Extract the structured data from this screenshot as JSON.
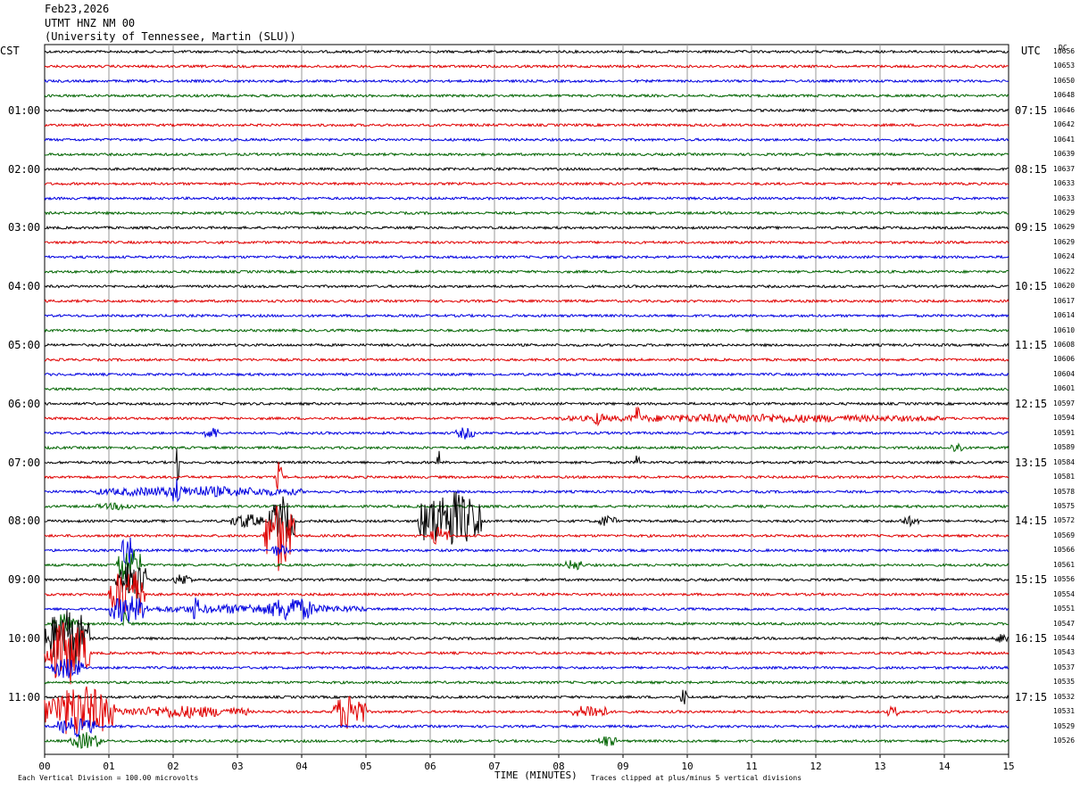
{
  "header": {
    "date": "Feb23,2026",
    "station": "UTMT HNZ NM 00",
    "network": "(University of Tennessee, Martin (SLU))"
  },
  "corners": {
    "left_tz": "CST",
    "right_tz": "UTC",
    "dc_label": "DC"
  },
  "footer": {
    "scale_note": "Each Vertical Division = 100.00 microvolts",
    "xlabel": "TIME (MINUTES)",
    "clip_note": "Traces clipped at plus/minus 5 vertical divisions"
  },
  "colors": {
    "cycle": [
      "#000000",
      "#e00000",
      "#0000e0",
      "#006400"
    ],
    "grid": "#999999"
  },
  "chart_data": {
    "type": "line",
    "x_range": [
      0,
      15
    ],
    "x_ticks": [
      "00",
      "01",
      "02",
      "03",
      "04",
      "05",
      "06",
      "07",
      "08",
      "09",
      "10",
      "11",
      "12",
      "13",
      "14",
      "15"
    ],
    "trace_count": 48,
    "minutes_per_trace": 15,
    "left_hour_labels": [
      "01:00",
      "02:00",
      "03:00",
      "04:00",
      "05:00",
      "06:00",
      "07:00",
      "08:00",
      "09:00",
      "10:00",
      "11:00"
    ],
    "right_hour_labels": [
      "07:15",
      "08:15",
      "09:15",
      "10:15",
      "11:15",
      "12:15",
      "13:15",
      "14:15",
      "15:15",
      "16:15",
      "17:15"
    ],
    "dc_values": [
      "10656",
      "10653",
      "10650",
      "10648",
      "10646",
      "10642",
      "10641",
      "10639",
      "10637",
      "10633",
      "10633",
      "10629",
      "10629",
      "10629",
      "10624",
      "10622",
      "10620",
      "10617",
      "10614",
      "10610",
      "10608",
      "10606",
      "10604",
      "10601",
      "10597",
      "10594",
      "10591",
      "10589",
      "10584",
      "10581",
      "10578",
      "10575",
      "10572",
      "10569",
      "10566",
      "10561",
      "10556",
      "10554",
      "10551",
      "10547",
      "10544",
      "10543",
      "10537",
      "10535",
      "10532",
      "10531",
      "10529",
      "10526"
    ],
    "events": [
      {
        "trace": 25,
        "start": 8.0,
        "end": 14.0,
        "amp": 0.35
      },
      {
        "trace": 25,
        "start": 8.5,
        "end": 8.7,
        "amp": 0.6
      },
      {
        "trace": 25,
        "start": 9.2,
        "end": 9.25,
        "amp": 2.2
      },
      {
        "trace": 26,
        "start": 2.5,
        "end": 2.7,
        "amp": 0.6
      },
      {
        "trace": 26,
        "start": 6.4,
        "end": 6.7,
        "amp": 0.5
      },
      {
        "trace": 27,
        "start": 14.1,
        "end": 14.3,
        "amp": 0.5
      },
      {
        "trace": 28,
        "start": 2.05,
        "end": 2.1,
        "amp": 1.8
      },
      {
        "trace": 28,
        "start": 6.1,
        "end": 6.15,
        "amp": 1.3
      },
      {
        "trace": 28,
        "start": 9.2,
        "end": 9.25,
        "amp": 1.4
      },
      {
        "trace": 29,
        "start": 3.6,
        "end": 3.7,
        "amp": 1.3
      },
      {
        "trace": 30,
        "start": 0.8,
        "end": 4.0,
        "amp": 0.45
      },
      {
        "trace": 30,
        "start": 2.0,
        "end": 2.1,
        "amp": 1.5
      },
      {
        "trace": 31,
        "start": 0.8,
        "end": 1.5,
        "amp": 0.3
      },
      {
        "trace": 32,
        "start": 2.9,
        "end": 3.4,
        "amp": 0.6
      },
      {
        "trace": 32,
        "start": 3.5,
        "end": 3.9,
        "amp": 2.0
      },
      {
        "trace": 32,
        "start": 5.8,
        "end": 6.8,
        "amp": 2.5
      },
      {
        "trace": 32,
        "start": 8.6,
        "end": 8.9,
        "amp": 0.5
      },
      {
        "trace": 32,
        "start": 13.3,
        "end": 13.6,
        "amp": 0.4
      },
      {
        "trace": 33,
        "start": 3.4,
        "end": 3.9,
        "amp": 2.8
      },
      {
        "trace": 33,
        "start": 6.0,
        "end": 6.3,
        "amp": 0.8
      },
      {
        "trace": 34,
        "start": 1.2,
        "end": 1.4,
        "amp": 1.6
      },
      {
        "trace": 34,
        "start": 3.5,
        "end": 3.8,
        "amp": 0.5
      },
      {
        "trace": 35,
        "start": 1.1,
        "end": 1.5,
        "amp": 1.6
      },
      {
        "trace": 35,
        "start": 8.1,
        "end": 8.4,
        "amp": 0.5
      },
      {
        "trace": 36,
        "start": 1.1,
        "end": 1.6,
        "amp": 1.8
      },
      {
        "trace": 36,
        "start": 2.0,
        "end": 2.3,
        "amp": 0.5
      },
      {
        "trace": 37,
        "start": 1.0,
        "end": 1.6,
        "amp": 2.2
      },
      {
        "trace": 38,
        "start": 1.0,
        "end": 1.6,
        "amp": 1.2
      },
      {
        "trace": 38,
        "start": 2.3,
        "end": 2.4,
        "amp": 1.2
      },
      {
        "trace": 38,
        "start": 3.5,
        "end": 4.2,
        "amp": 1.1
      },
      {
        "trace": 38,
        "start": 1.6,
        "end": 5.0,
        "amp": 0.4
      },
      {
        "trace": 39,
        "start": 0.1,
        "end": 0.5,
        "amp": 0.8
      },
      {
        "trace": 39,
        "start": 1.2,
        "end": 1.3,
        "amp": 1.4
      },
      {
        "trace": 40,
        "start": 0.0,
        "end": 0.7,
        "amp": 2.6
      },
      {
        "trace": 40,
        "start": 14.8,
        "end": 15.0,
        "amp": 0.5
      },
      {
        "trace": 41,
        "start": 0.0,
        "end": 0.7,
        "amp": 2.6
      },
      {
        "trace": 42,
        "start": 0.1,
        "end": 0.6,
        "amp": 0.9
      },
      {
        "trace": 44,
        "start": 9.9,
        "end": 10.0,
        "amp": 0.8
      },
      {
        "trace": 45,
        "start": 0.0,
        "end": 1.1,
        "amp": 2.2
      },
      {
        "trace": 45,
        "start": 1.1,
        "end": 3.2,
        "amp": 0.5
      },
      {
        "trace": 45,
        "start": 4.5,
        "end": 5.0,
        "amp": 1.6
      },
      {
        "trace": 45,
        "start": 8.2,
        "end": 8.8,
        "amp": 0.6
      },
      {
        "trace": 45,
        "start": 13.1,
        "end": 13.3,
        "amp": 0.5
      },
      {
        "trace": 46,
        "start": 0.2,
        "end": 0.8,
        "amp": 0.8
      },
      {
        "trace": 47,
        "start": 0.4,
        "end": 0.9,
        "amp": 0.7
      },
      {
        "trace": 47,
        "start": 8.6,
        "end": 8.9,
        "amp": 0.5
      }
    ]
  }
}
